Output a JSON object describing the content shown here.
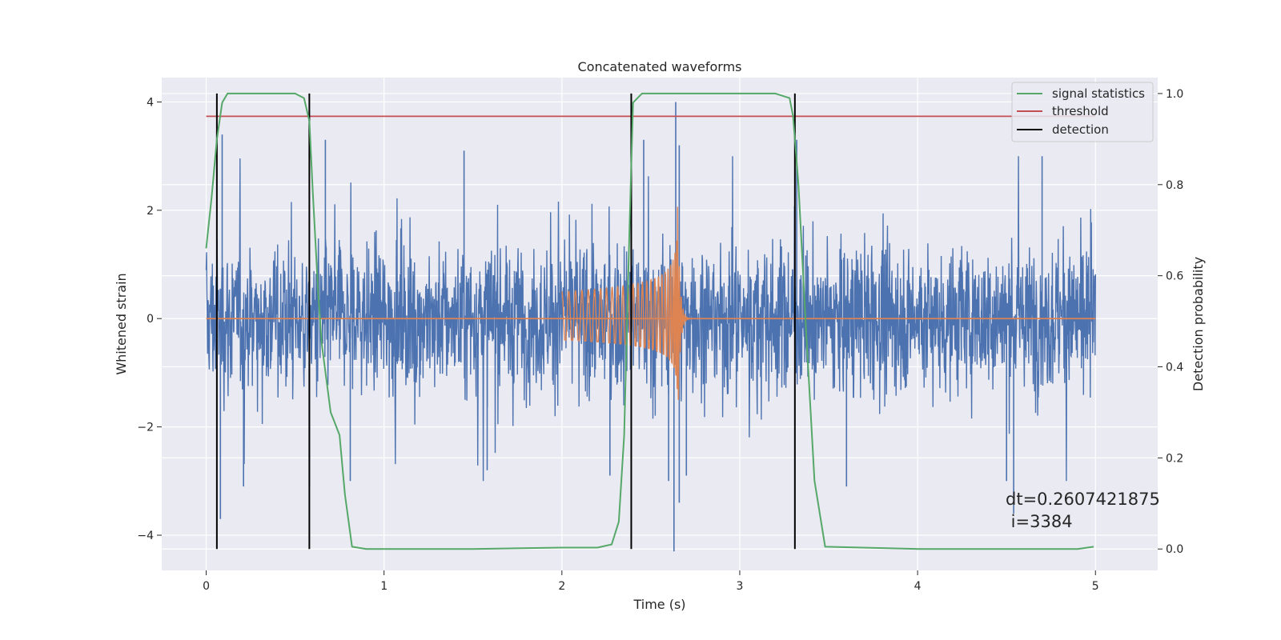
{
  "chart_data": {
    "type": "line",
    "title": "Concatenated waveforms",
    "xlabel": "Time (s)",
    "ylabel": "Whitened strain",
    "y2label": "Detection probability",
    "xlim": [
      -0.25,
      5.35
    ],
    "ylim": [
      -4.65,
      4.45
    ],
    "y2lim": [
      -0.047,
      1.035
    ],
    "xticks": [
      0,
      1,
      2,
      3,
      4,
      5
    ],
    "xtick_labels": [
      "0",
      "1",
      "2",
      "3",
      "4",
      "5"
    ],
    "yticks": [
      -4,
      -2,
      0,
      2,
      4
    ],
    "ytick_labels": [
      "−4",
      "−2",
      "0",
      "2",
      "4"
    ],
    "y2ticks": [
      0.0,
      0.2,
      0.4,
      0.6,
      0.8,
      1.0
    ],
    "y2tick_labels": [
      "0.0",
      "0.2",
      "0.4",
      "0.6",
      "0.8",
      "1.0"
    ],
    "grid": true,
    "legend_position": "top-right",
    "colors": {
      "strain": "#4c72b0",
      "waveform": "#dd8452",
      "signal_statistics": "#55a868",
      "threshold": "#c44e52",
      "detection": "#000000",
      "background": "#eaeaf2"
    },
    "series": [
      {
        "kind": "strain-noise",
        "x_range": [
          0,
          5
        ],
        "typical_range": [
          -1,
          1
        ],
        "peak_points": [
          {
            "x": 0.08,
            "y": -3.7
          },
          {
            "x": 0.09,
            "y": 3.4
          },
          {
            "x": 0.21,
            "y": -3.1
          },
          {
            "x": 0.58,
            "y": -3.1
          },
          {
            "x": 0.67,
            "y": 3.3
          },
          {
            "x": 0.81,
            "y": -3.0
          },
          {
            "x": 1.45,
            "y": 3.1
          },
          {
            "x": 1.58,
            "y": -2.8
          },
          {
            "x": 2.27,
            "y": -2.9
          },
          {
            "x": 2.46,
            "y": 3.3
          },
          {
            "x": 2.6,
            "y": -3.0
          },
          {
            "x": 2.63,
            "y": -4.3
          },
          {
            "x": 2.64,
            "y": 4.0
          },
          {
            "x": 2.66,
            "y": -3.4
          },
          {
            "x": 2.66,
            "y": 3.2
          },
          {
            "x": 2.7,
            "y": -2.9
          },
          {
            "x": 3.32,
            "y": 3.3
          },
          {
            "x": 3.6,
            "y": -3.1
          },
          {
            "x": 4.5,
            "y": -3.0
          },
          {
            "x": 4.54,
            "y": -3.6
          },
          {
            "x": 4.7,
            "y": 3.0
          }
        ]
      },
      {
        "kind": "chirp",
        "x_start": 2.0,
        "x_merger": 2.65,
        "x_ring_end": 2.9,
        "amp_start": 0.5,
        "amp_peak": 2.3,
        "amp_min_peak": -1.8
      }
    ],
    "signal_statistics": {
      "x": [
        0,
        0.03,
        0.06,
        0.09,
        0.12,
        0.15,
        0.5,
        0.55,
        0.58,
        0.6,
        0.63,
        0.65,
        0.7,
        0.72,
        0.75,
        0.78,
        0.82,
        0.9,
        1.5,
        2.0,
        2.2,
        2.28,
        2.32,
        2.35,
        2.38,
        2.4,
        2.45,
        2.5,
        3.2,
        3.28,
        3.3,
        3.33,
        3.37,
        3.42,
        3.48,
        4.0,
        4.9,
        4.99
      ],
      "y": [
        0.66,
        0.77,
        0.9,
        0.98,
        1.0,
        1.0,
        1.0,
        0.99,
        0.94,
        0.78,
        0.56,
        0.45,
        0.3,
        0.28,
        0.25,
        0.12,
        0.005,
        0.0,
        0.0,
        0.003,
        0.003,
        0.01,
        0.06,
        0.25,
        0.7,
        0.98,
        1.0,
        1.0,
        1.0,
        0.99,
        0.95,
        0.8,
        0.5,
        0.15,
        0.005,
        0.0,
        0.0,
        0.005
      ]
    },
    "threshold": {
      "value": 0.95,
      "x_range": [
        0,
        5
      ]
    },
    "detections": [
      0.06,
      0.58,
      2.39,
      3.31
    ],
    "legend": [
      {
        "label": "signal statistics",
        "color": "#55a868"
      },
      {
        "label": "threshold",
        "color": "#c44e52"
      },
      {
        "label": "detection",
        "color": "#000000"
      }
    ],
    "annotation_lines": [
      "dt=0.2607421875",
      " i=3384"
    ]
  }
}
